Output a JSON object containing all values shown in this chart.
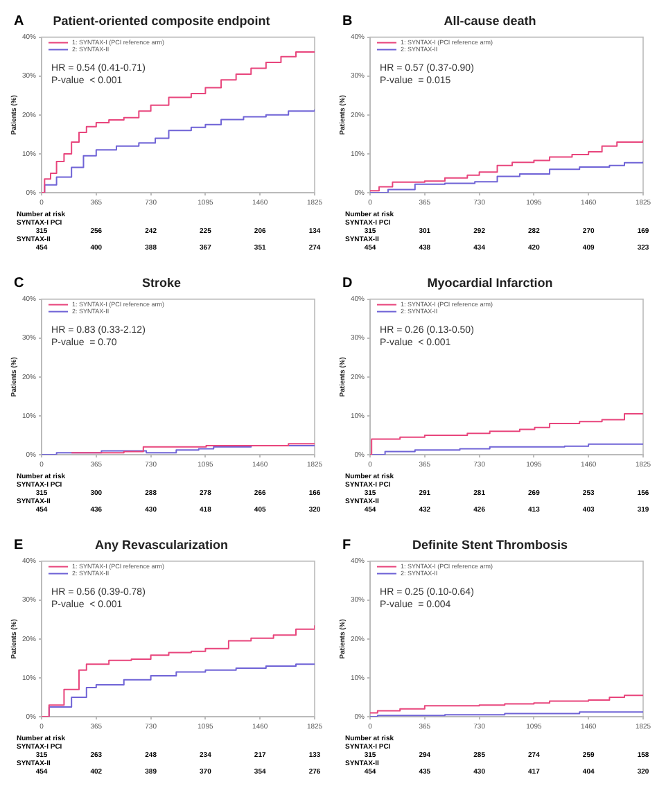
{
  "chart_data": [
    {
      "type": "step",
      "title": "Patient-oriented composite endpoint",
      "ylabel": "Patients (%)",
      "legend": "top left",
      "xlim": [
        0,
        1825
      ],
      "xticks": [
        0,
        365,
        730,
        1095,
        1460,
        1825
      ],
      "ylim": [
        0,
        40
      ],
      "yticks": [
        {
          "value": 0,
          "label": "0%"
        },
        {
          "value": 10,
          "label": "10%"
        },
        {
          "value": 20,
          "label": "20%"
        },
        {
          "value": 30,
          "label": "30%"
        },
        {
          "value": 40,
          "label": "40%"
        }
      ],
      "series": [
        {
          "name": "1: SYNTAX-I (PCI reference arm)",
          "color": "#e8457c",
          "x": [
            0,
            20,
            60,
            100,
            150,
            200,
            250,
            300,
            365,
            450,
            550,
            650,
            730,
            850,
            1000,
            1095,
            1200,
            1300,
            1400,
            1500,
            1600,
            1700,
            1825
          ],
          "values": [
            0,
            3.5,
            5,
            8,
            10,
            13,
            15.5,
            17,
            18,
            18.7,
            19.3,
            21,
            22.5,
            24.5,
            25.5,
            27,
            29,
            30.5,
            32,
            33.5,
            35,
            36.2,
            36.3
          ]
        },
        {
          "name": "2: SYNTAX-II",
          "color": "#6f63d6",
          "x": [
            0,
            20,
            100,
            200,
            280,
            365,
            500,
            650,
            760,
            850,
            1000,
            1095,
            1200,
            1350,
            1500,
            1650,
            1825
          ],
          "values": [
            0,
            2,
            4,
            6.5,
            9.5,
            11,
            12,
            12.8,
            14,
            16,
            16.8,
            17.5,
            18.8,
            19.5,
            20,
            21,
            21.4
          ]
        }
      ],
      "annotations": [
        "A",
        "HR = 0.54 (0.41-0.71)",
        "P-value  < 0.001",
        "Number at risk",
        "SYNTAX-I PCI",
        "SYNTAX-II",
        "315",
        "256",
        "242",
        "225",
        "206",
        "134",
        "454",
        "400",
        "388",
        "367",
        "351",
        "274"
      ]
    },
    {
      "type": "step",
      "title": "All-cause death",
      "ylabel": "Patients (%)",
      "legend": "top left",
      "xlim": [
        0,
        1825
      ],
      "xticks": [
        0,
        365,
        730,
        1095,
        1460,
        1825
      ],
      "ylim": [
        0,
        40
      ],
      "yticks": [
        {
          "value": 0,
          "label": "0%"
        },
        {
          "value": 10,
          "label": "10%"
        },
        {
          "value": 20,
          "label": "20%"
        },
        {
          "value": 30,
          "label": "30%"
        },
        {
          "value": 40,
          "label": "40%"
        }
      ],
      "series": [
        {
          "name": "1: SYNTAX-I (PCI reference arm)",
          "color": "#e8457c",
          "x": [
            0,
            60,
            150,
            365,
            500,
            650,
            730,
            850,
            950,
            1095,
            1200,
            1350,
            1460,
            1550,
            1650,
            1825
          ],
          "values": [
            0.5,
            1.5,
            2.7,
            3,
            3.8,
            4.5,
            5.3,
            7,
            7.8,
            8.3,
            9.2,
            9.8,
            10.5,
            12,
            13,
            13.6
          ]
        },
        {
          "name": "2: SYNTAX-II",
          "color": "#6f63d6",
          "x": [
            0,
            120,
            300,
            500,
            700,
            850,
            1000,
            1200,
            1400,
            1600,
            1700,
            1825
          ],
          "values": [
            0,
            0.8,
            2.2,
            2.4,
            2.8,
            4.2,
            4.8,
            6,
            6.6,
            7,
            7.7,
            8
          ]
        }
      ],
      "annotations": [
        "B",
        "HR = 0.57 (0.37-0.90)",
        "P-value  = 0.015",
        "Number at risk",
        "SYNTAX-I PCI",
        "SYNTAX-II",
        "315",
        "301",
        "292",
        "282",
        "270",
        "169",
        "454",
        "438",
        "434",
        "420",
        "409",
        "323"
      ]
    },
    {
      "type": "step",
      "title": "Stroke",
      "ylabel": "Patients (%)",
      "legend": "top left",
      "xlim": [
        0,
        1825
      ],
      "xticks": [
        0,
        365,
        730,
        1095,
        1460,
        1825
      ],
      "ylim": [
        0,
        40
      ],
      "yticks": [
        {
          "value": 0,
          "label": "0%"
        },
        {
          "value": 10,
          "label": "10%"
        },
        {
          "value": 20,
          "label": "20%"
        },
        {
          "value": 30,
          "label": "30%"
        },
        {
          "value": 40,
          "label": "40%"
        }
      ],
      "series": [
        {
          "name": "1: SYNTAX-I (PCI reference arm)",
          "color": "#e8457c",
          "x": [
            200,
            550,
            680,
            900,
            1100,
            1350,
            1650,
            1825
          ],
          "values": [
            0.5,
            0.8,
            2,
            2,
            2.3,
            2.3,
            2.8,
            2.8
          ]
        },
        {
          "name": "2: SYNTAX-II",
          "color": "#6f63d6",
          "x": [
            0,
            100,
            400,
            700,
            900,
            1050,
            1150,
            1400,
            1825
          ],
          "values": [
            0,
            0.5,
            1,
            0.5,
            1.2,
            1.5,
            2,
            2.3,
            2.3
          ]
        }
      ],
      "annotations": [
        "C",
        "HR = 0.83 (0.33-2.12)",
        "P-value  = 0.70",
        "Number at risk",
        "SYNTAX-I PCI",
        "SYNTAX-II",
        "315",
        "300",
        "288",
        "278",
        "266",
        "166",
        "454",
        "436",
        "430",
        "418",
        "405",
        "320"
      ]
    },
    {
      "type": "step",
      "title": "Myocardial Infarction",
      "ylabel": "Patients (%)",
      "legend": "top left",
      "xlim": [
        0,
        1825
      ],
      "xticks": [
        0,
        365,
        730,
        1095,
        1460,
        1825
      ],
      "ylim": [
        0,
        40
      ],
      "yticks": [
        {
          "value": 0,
          "label": "0%"
        },
        {
          "value": 10,
          "label": "10%"
        },
        {
          "value": 20,
          "label": "20%"
        },
        {
          "value": 30,
          "label": "30%"
        },
        {
          "value": 40,
          "label": "40%"
        }
      ],
      "series": [
        {
          "name": "1: SYNTAX-I (PCI reference arm)",
          "color": "#e8457c",
          "x": [
            0,
            10,
            200,
            365,
            650,
            800,
            1000,
            1100,
            1200,
            1400,
            1550,
            1700,
            1825
          ],
          "values": [
            0,
            4,
            4.5,
            5,
            5.5,
            6,
            6.5,
            7,
            8,
            8.5,
            9,
            10.5,
            10.5
          ]
        },
        {
          "name": "2: SYNTAX-II",
          "color": "#6f63d6",
          "x": [
            0,
            100,
            300,
            600,
            800,
            1000,
            1300,
            1460,
            1825
          ],
          "values": [
            0,
            0.8,
            1.2,
            1.5,
            2,
            2,
            2.2,
            2.7,
            2.7
          ]
        }
      ],
      "annotations": [
        "D",
        "HR = 0.26 (0.13-0.50)",
        "P-value  < 0.001",
        "Number at risk",
        "SYNTAX-I PCI",
        "SYNTAX-II",
        "315",
        "291",
        "281",
        "269",
        "253",
        "156",
        "454",
        "432",
        "426",
        "413",
        "403",
        "319"
      ]
    },
    {
      "type": "step",
      "title": "Any Revascularization",
      "ylabel": "Patients (%)",
      "legend": "top left",
      "xlim": [
        0,
        1825
      ],
      "xticks": [
        0,
        365,
        730,
        1095,
        1460,
        1825
      ],
      "ylim": [
        0,
        40
      ],
      "yticks": [
        {
          "value": 0,
          "label": "0%"
        },
        {
          "value": 10,
          "label": "10%"
        },
        {
          "value": 20,
          "label": "20%"
        },
        {
          "value": 30,
          "label": "30%"
        },
        {
          "value": 40,
          "label": "40%"
        }
      ],
      "series": [
        {
          "name": "1: SYNTAX-I (PCI reference arm)",
          "color": "#e8457c",
          "x": [
            0,
            50,
            150,
            250,
            300,
            450,
            600,
            730,
            850,
            1000,
            1095,
            1250,
            1400,
            1550,
            1700,
            1825
          ],
          "values": [
            0,
            3,
            7,
            12,
            13.5,
            14.5,
            14.8,
            15.8,
            16.5,
            16.8,
            17.5,
            19.5,
            20.2,
            21,
            22.5,
            23.5
          ]
        },
        {
          "name": "2: SYNTAX-II",
          "color": "#6f63d6",
          "x": [
            0,
            50,
            200,
            300,
            365,
            550,
            730,
            900,
            1095,
            1300,
            1500,
            1700,
            1825
          ],
          "values": [
            0,
            2.5,
            5,
            7.5,
            8.2,
            9.5,
            10.5,
            11.5,
            12,
            12.5,
            13,
            13.5,
            13.5
          ]
        }
      ],
      "annotations": [
        "E",
        "HR = 0.56 (0.39-0.78)",
        "P-value  < 0.001",
        "Number at risk",
        "SYNTAX-I PCI",
        "SYNTAX-II",
        "315",
        "263",
        "248",
        "234",
        "217",
        "133",
        "454",
        "402",
        "389",
        "370",
        "354",
        "276"
      ]
    },
    {
      "type": "step",
      "title": "Definite Stent Thrombosis",
      "ylabel": "Patients (%)",
      "legend": "top left",
      "xlim": [
        0,
        1825
      ],
      "xticks": [
        0,
        365,
        730,
        1095,
        1460,
        1825
      ],
      "ylim": [
        0,
        40
      ],
      "yticks": [
        {
          "value": 0,
          "label": "0%"
        },
        {
          "value": 10,
          "label": "10%"
        },
        {
          "value": 20,
          "label": "20%"
        },
        {
          "value": 30,
          "label": "30%"
        },
        {
          "value": 40,
          "label": "40%"
        }
      ],
      "series": [
        {
          "name": "1: SYNTAX-I (PCI reference arm)",
          "color": "#e8457c",
          "x": [
            0,
            50,
            200,
            365,
            730,
            900,
            1095,
            1200,
            1460,
            1600,
            1700,
            1825
          ],
          "values": [
            1,
            1.5,
            2,
            2.8,
            3,
            3.3,
            3.5,
            4,
            4.3,
            5,
            5.5,
            5.5
          ]
        },
        {
          "name": "2: SYNTAX-II",
          "color": "#6f63d6",
          "x": [
            0,
            50,
            500,
            900,
            1300,
            1400,
            1825
          ],
          "values": [
            0,
            0.3,
            0.5,
            0.8,
            0.8,
            1.2,
            1.2
          ]
        }
      ],
      "annotations": [
        "F",
        "HR = 0.25 (0.10-0.64)",
        "P-value  = 0.004",
        "Number at risk",
        "SYNTAX-I PCI",
        "SYNTAX-II",
        "315",
        "294",
        "285",
        "274",
        "259",
        "158",
        "454",
        "435",
        "430",
        "417",
        "404",
        "320"
      ]
    }
  ]
}
